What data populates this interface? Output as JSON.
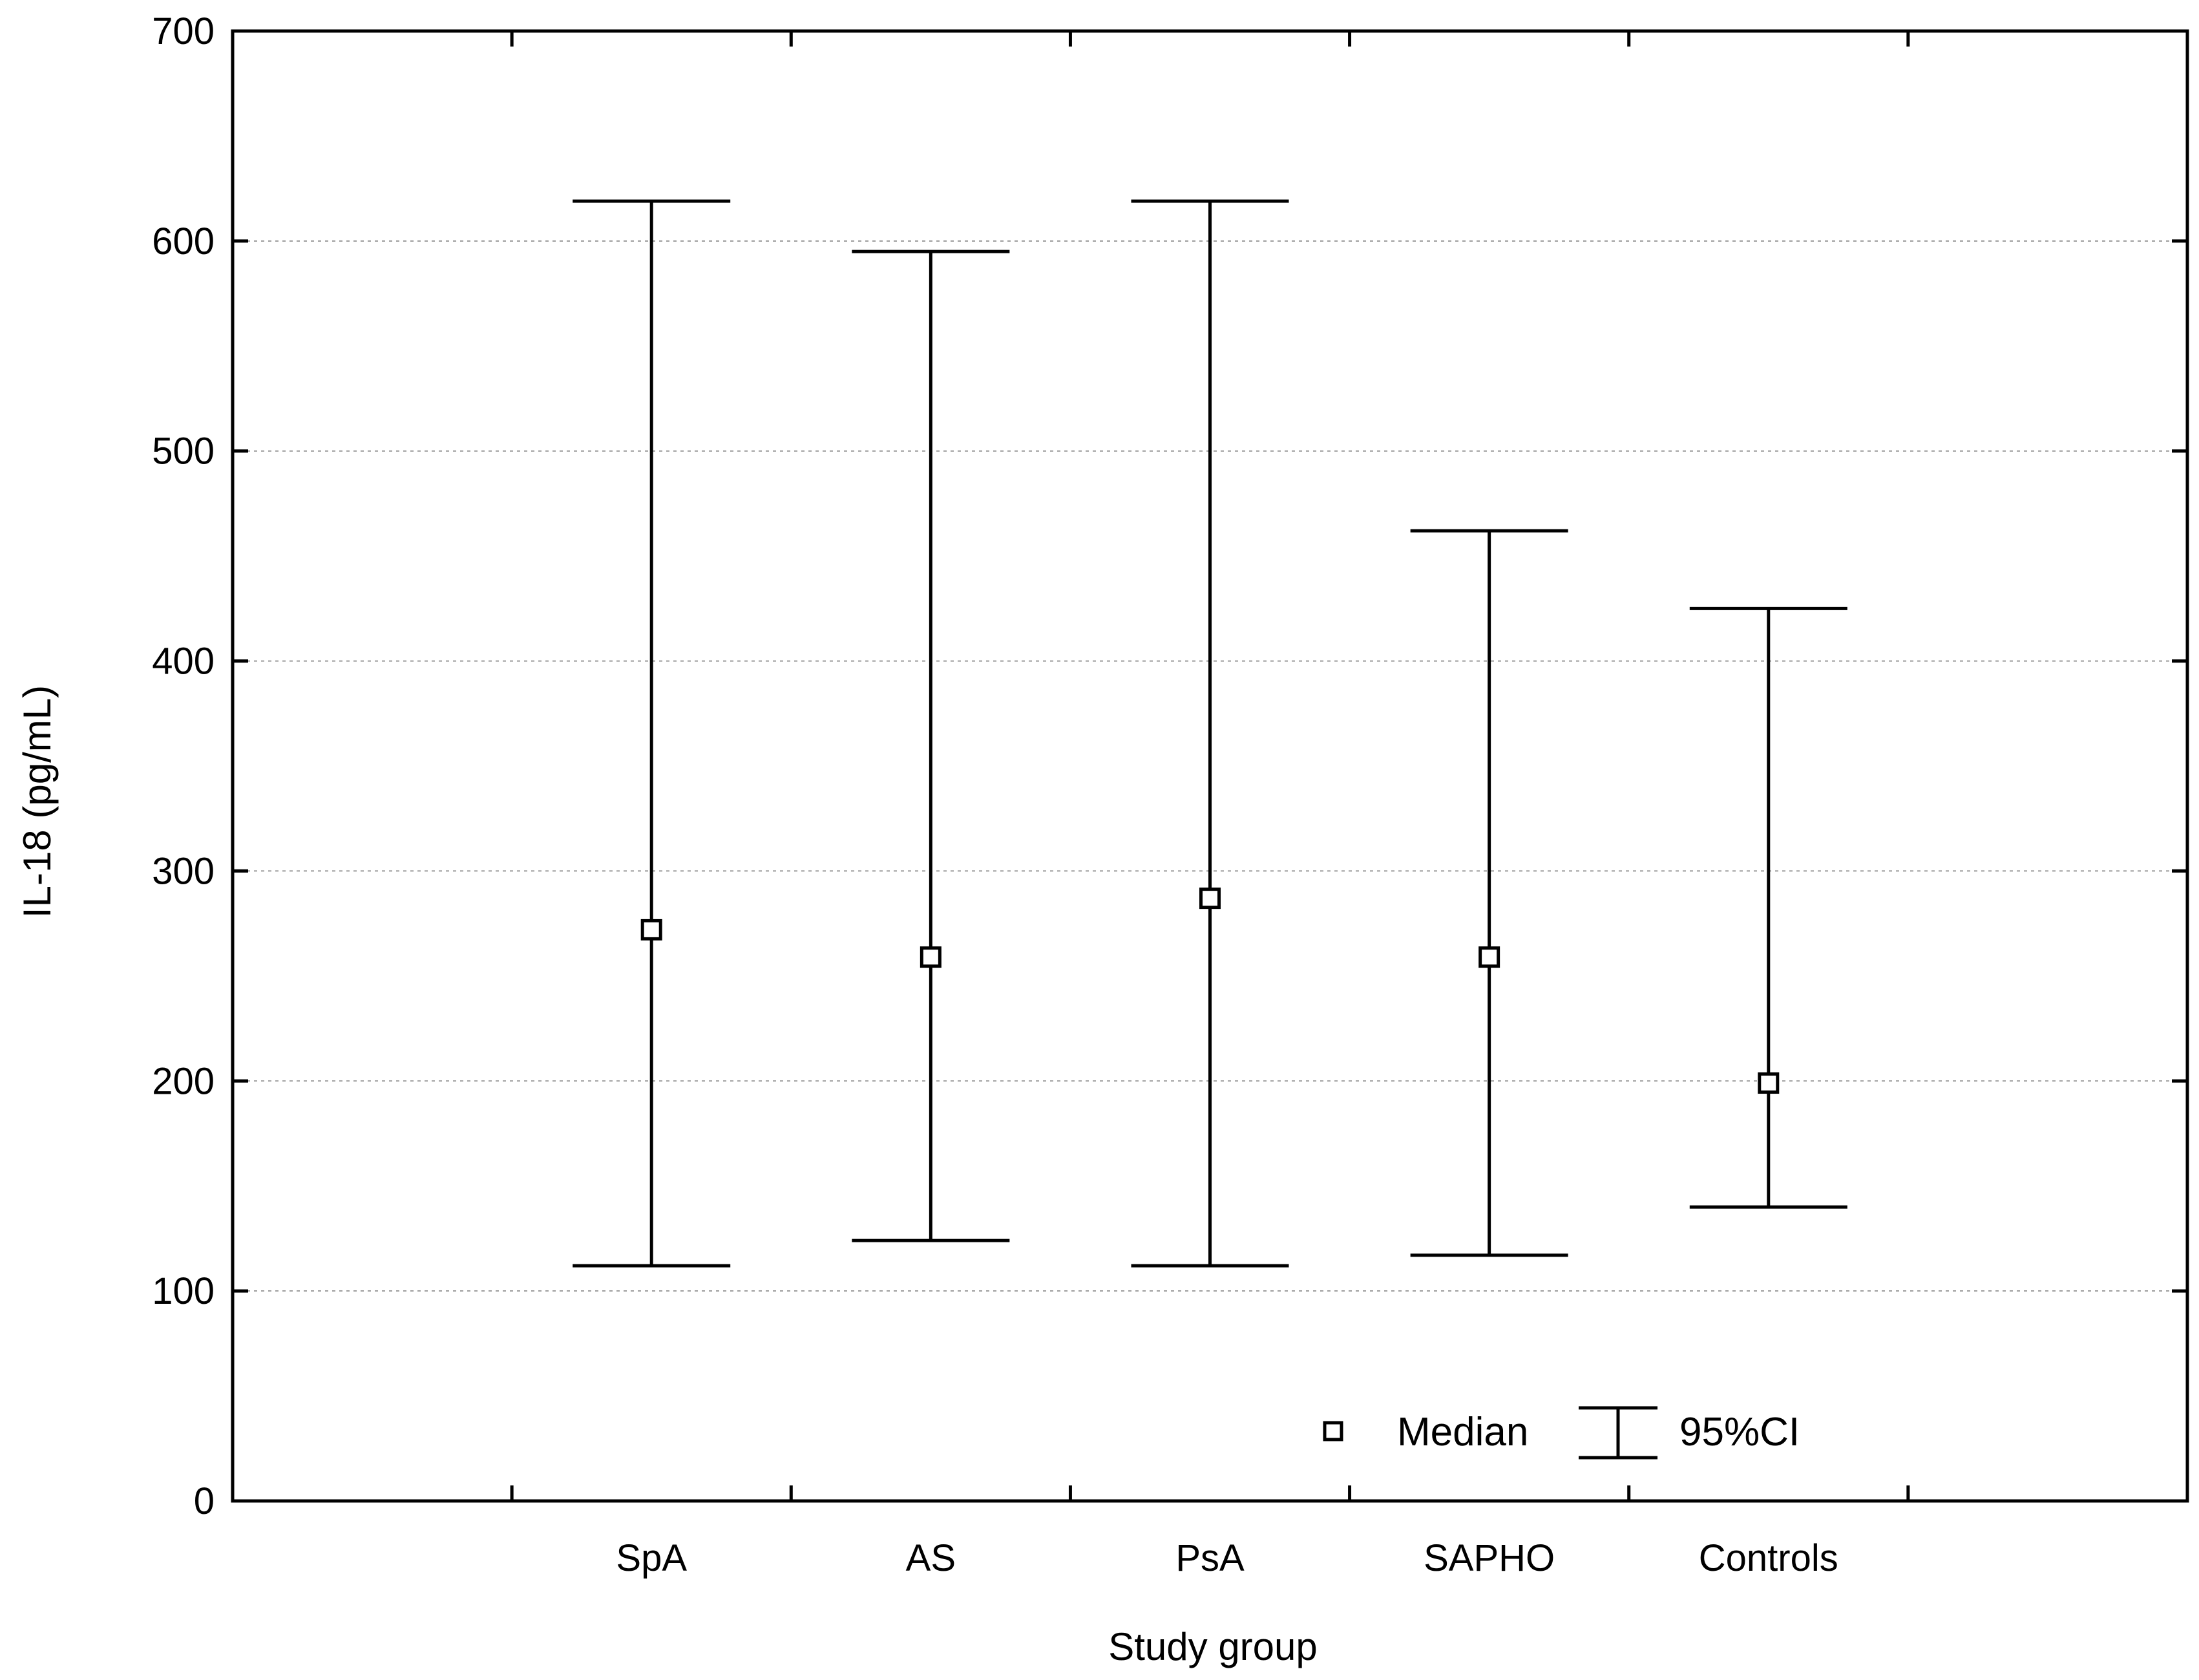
{
  "chart_data": {
    "type": "errorbar",
    "xlabel": "Study group",
    "ylabel": "IL-18 (pg/mL)",
    "ylim": [
      0,
      700
    ],
    "yticks": [
      0,
      100,
      200,
      300,
      400,
      500,
      600,
      700
    ],
    "grid": "horizontal dotted",
    "categories": [
      "SpA",
      "AS",
      "PsA",
      "SAPHO",
      "Controls"
    ],
    "series": [
      {
        "name": "Median",
        "values": [
          272,
          259,
          287,
          259,
          199
        ]
      },
      {
        "name": "95%CI",
        "lower": [
          112,
          124,
          112,
          117,
          140
        ],
        "upper": [
          619,
          595,
          619,
          462,
          425
        ]
      }
    ],
    "legend": {
      "placement": "bottom-right",
      "items": [
        "Median",
        "95%CI"
      ]
    }
  }
}
